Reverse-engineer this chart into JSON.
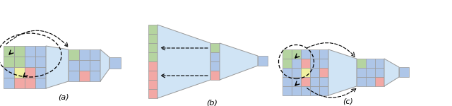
{
  "fig_width": 6.4,
  "fig_height": 1.5,
  "dpi": 100,
  "bg_color": "#ffffff",
  "blue": "#aec6e8",
  "green": "#b5d4a0",
  "red": "#f2a8a5",
  "yellow": "#f0f0a0",
  "edge_color": "#999999",
  "trap_fill": "#d0e4f5",
  "label_a": "(a)",
  "label_b": "(b)",
  "label_c": "(c)"
}
